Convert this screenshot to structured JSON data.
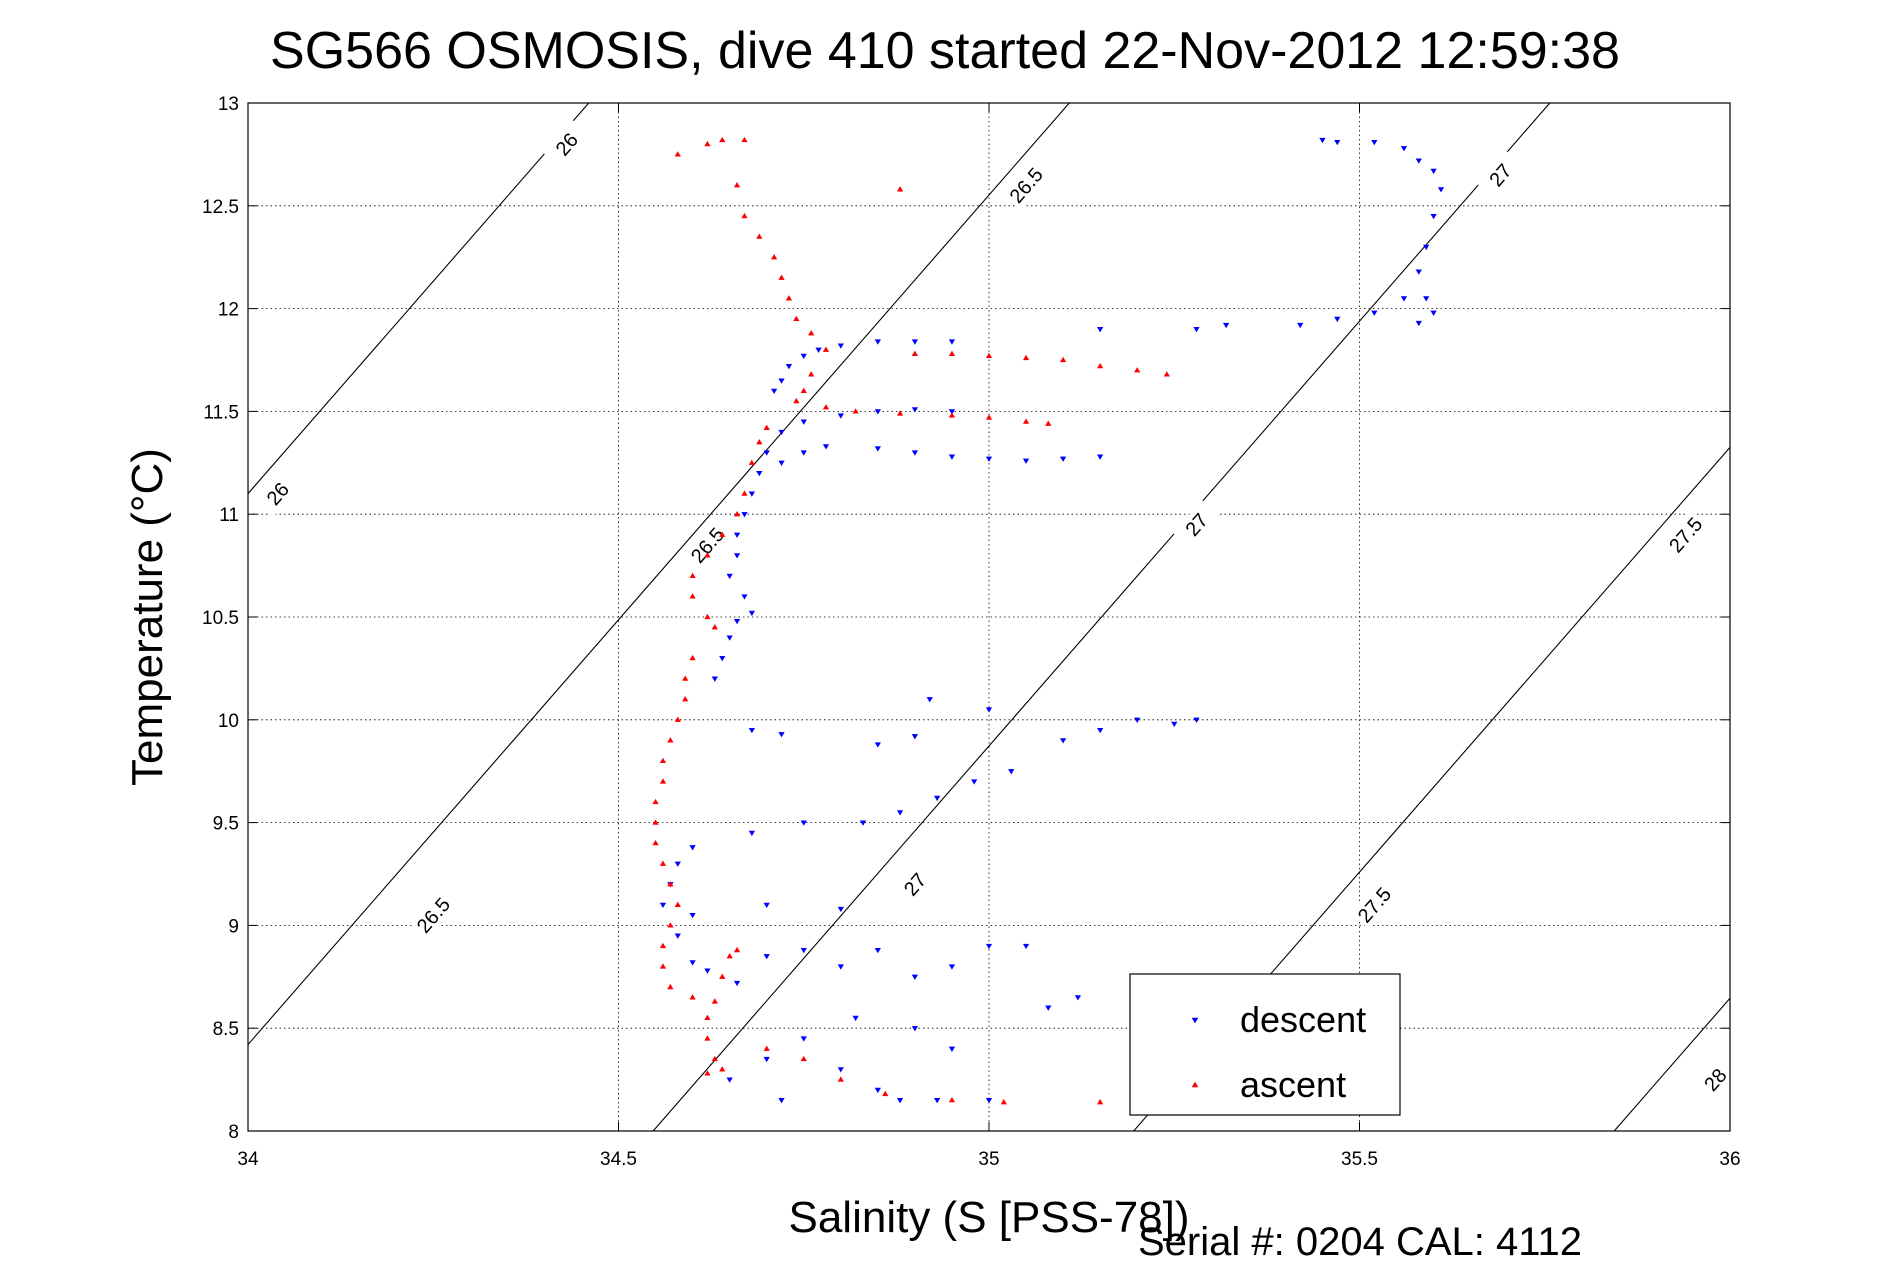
{
  "chart_data": {
    "type": "scatter",
    "title": "SG566 OSMOSIS, dive 410 started 22-Nov-2012 12:59:38",
    "xlabel": "Salinity (S [PSS-78])",
    "ylabel": "Temperature (°C)",
    "footer": "Serial #: 0204  CAL: 4112",
    "xlim": [
      34,
      36
    ],
    "ylim": [
      8,
      13
    ],
    "xticks": [
      34,
      34.5,
      35,
      35.5,
      36
    ],
    "yticks": [
      8,
      8.5,
      9,
      9.5,
      10,
      10.5,
      11,
      11.5,
      12,
      12.5,
      13
    ],
    "xtick_labels": [
      "34",
      "34.5",
      "35",
      "35.5",
      "36"
    ],
    "ytick_labels": [
      "8",
      "8.5",
      "9",
      "9.5",
      "10",
      "10.5",
      "11",
      "11.5",
      "12",
      "12.5",
      "13"
    ],
    "grid": true,
    "legend_position": "bottom-right",
    "density_contours": [
      {
        "level": 26,
        "label": "26",
        "label_positions": [
          [
            34.43,
            12.8
          ],
          [
            34.04,
            11.1
          ]
        ]
      },
      {
        "level": 26.5,
        "label": "26.5",
        "label_positions": [
          [
            35.05,
            12.6
          ],
          [
            34.62,
            10.85
          ],
          [
            34.25,
            9.05
          ]
        ]
      },
      {
        "level": 27,
        "label": "27",
        "label_positions": [
          [
            35.69,
            12.65
          ],
          [
            35.28,
            10.95
          ],
          [
            34.9,
            9.2
          ]
        ]
      },
      {
        "level": 27.5,
        "label": "27.5",
        "label_positions": [
          [
            35.94,
            10.9
          ],
          [
            35.52,
            9.1
          ]
        ]
      },
      {
        "level": 28,
        "label": "28",
        "label_positions": [
          [
            35.98,
            8.25
          ]
        ]
      }
    ],
    "series": [
      {
        "name": "descent",
        "color": "#0000ff",
        "marker": "triangle-down",
        "points": [
          [
            35.45,
            12.82
          ],
          [
            35.47,
            12.81
          ],
          [
            35.52,
            12.81
          ],
          [
            35.56,
            12.78
          ],
          [
            35.58,
            12.72
          ],
          [
            35.6,
            12.67
          ],
          [
            35.61,
            12.58
          ],
          [
            35.6,
            12.45
          ],
          [
            35.59,
            12.3
          ],
          [
            35.58,
            12.18
          ],
          [
            35.59,
            12.05
          ],
          [
            35.6,
            11.98
          ],
          [
            35.58,
            11.93
          ],
          [
            35.56,
            12.05
          ],
          [
            35.52,
            11.98
          ],
          [
            35.47,
            11.95
          ],
          [
            35.42,
            11.92
          ],
          [
            35.32,
            11.92
          ],
          [
            35.28,
            11.9
          ],
          [
            35.15,
            11.9
          ],
          [
            34.95,
            11.84
          ],
          [
            34.9,
            11.84
          ],
          [
            34.85,
            11.84
          ],
          [
            34.8,
            11.82
          ],
          [
            34.77,
            11.8
          ],
          [
            34.75,
            11.77
          ],
          [
            34.73,
            11.72
          ],
          [
            34.72,
            11.65
          ],
          [
            34.71,
            11.6
          ],
          [
            35.15,
            11.28
          ],
          [
            35.1,
            11.27
          ],
          [
            35.05,
            11.26
          ],
          [
            35.0,
            11.27
          ],
          [
            34.95,
            11.28
          ],
          [
            34.9,
            11.3
          ],
          [
            34.85,
            11.32
          ],
          [
            34.78,
            11.33
          ],
          [
            34.75,
            11.3
          ],
          [
            34.72,
            11.25
          ],
          [
            34.95,
            11.5
          ],
          [
            34.9,
            11.51
          ],
          [
            34.85,
            11.5
          ],
          [
            34.8,
            11.48
          ],
          [
            34.75,
            11.45
          ],
          [
            34.72,
            11.4
          ],
          [
            34.7,
            11.3
          ],
          [
            34.69,
            11.2
          ],
          [
            34.68,
            11.1
          ],
          [
            34.67,
            11.0
          ],
          [
            34.66,
            10.9
          ],
          [
            34.66,
            10.8
          ],
          [
            34.65,
            10.7
          ],
          [
            34.67,
            10.6
          ],
          [
            34.68,
            10.52
          ],
          [
            34.66,
            10.48
          ],
          [
            34.65,
            10.4
          ],
          [
            34.64,
            10.3
          ],
          [
            34.63,
            10.2
          ],
          [
            34.68,
            9.95
          ],
          [
            34.72,
            9.93
          ],
          [
            34.85,
            9.88
          ],
          [
            34.9,
            9.92
          ],
          [
            35.0,
            10.05
          ],
          [
            35.03,
            9.75
          ],
          [
            34.98,
            9.7
          ],
          [
            34.93,
            9.62
          ],
          [
            34.88,
            9.55
          ],
          [
            34.83,
            9.5
          ],
          [
            35.1,
            9.9
          ],
          [
            35.15,
            9.95
          ],
          [
            35.2,
            10.0
          ],
          [
            35.25,
            9.98
          ],
          [
            35.28,
            10.0
          ],
          [
            34.92,
            10.1
          ],
          [
            34.6,
            9.38
          ],
          [
            34.68,
            9.45
          ],
          [
            34.75,
            9.5
          ],
          [
            34.58,
            9.3
          ],
          [
            34.57,
            9.2
          ],
          [
            34.56,
            9.1
          ],
          [
            34.6,
            9.05
          ],
          [
            34.7,
            9.1
          ],
          [
            34.8,
            9.08
          ],
          [
            34.58,
            8.95
          ],
          [
            34.6,
            8.82
          ],
          [
            34.62,
            8.78
          ],
          [
            34.66,
            8.72
          ],
          [
            34.7,
            8.85
          ],
          [
            34.75,
            8.88
          ],
          [
            34.8,
            8.8
          ],
          [
            34.85,
            8.88
          ],
          [
            34.9,
            8.75
          ],
          [
            34.95,
            8.8
          ],
          [
            35.0,
            8.9
          ],
          [
            35.05,
            8.9
          ],
          [
            35.08,
            8.6
          ],
          [
            35.12,
            8.65
          ],
          [
            34.82,
            8.55
          ],
          [
            34.9,
            8.5
          ],
          [
            34.95,
            8.4
          ],
          [
            34.75,
            8.45
          ],
          [
            34.7,
            8.35
          ],
          [
            34.8,
            8.3
          ],
          [
            34.85,
            8.2
          ],
          [
            34.88,
            8.15
          ],
          [
            34.93,
            8.15
          ],
          [
            35.0,
            8.15
          ],
          [
            34.65,
            8.25
          ],
          [
            34.72,
            8.15
          ]
        ]
      },
      {
        "name": "ascent",
        "color": "#ff0000",
        "marker": "triangle-up",
        "points": [
          [
            34.58,
            12.75
          ],
          [
            34.62,
            12.8
          ],
          [
            34.64,
            12.82
          ],
          [
            34.67,
            12.82
          ],
          [
            34.88,
            12.58
          ],
          [
            34.66,
            12.6
          ],
          [
            34.67,
            12.45
          ],
          [
            34.69,
            12.35
          ],
          [
            34.71,
            12.25
          ],
          [
            34.72,
            12.15
          ],
          [
            34.73,
            12.05
          ],
          [
            34.74,
            11.95
          ],
          [
            34.76,
            11.88
          ],
          [
            34.78,
            11.8
          ],
          [
            34.76,
            11.68
          ],
          [
            34.75,
            11.6
          ],
          [
            34.74,
            11.55
          ],
          [
            34.78,
            11.52
          ],
          [
            34.82,
            11.5
          ],
          [
            34.88,
            11.49
          ],
          [
            34.95,
            11.48
          ],
          [
            35.0,
            11.47
          ],
          [
            35.05,
            11.45
          ],
          [
            35.08,
            11.44
          ],
          [
            34.9,
            11.78
          ],
          [
            34.95,
            11.78
          ],
          [
            35.0,
            11.77
          ],
          [
            35.05,
            11.76
          ],
          [
            35.1,
            11.75
          ],
          [
            35.15,
            11.72
          ],
          [
            35.2,
            11.7
          ],
          [
            35.24,
            11.68
          ],
          [
            34.7,
            11.42
          ],
          [
            34.69,
            11.35
          ],
          [
            34.68,
            11.25
          ],
          [
            34.67,
            11.1
          ],
          [
            34.66,
            11.0
          ],
          [
            34.64,
            10.9
          ],
          [
            34.62,
            10.8
          ],
          [
            34.6,
            10.7
          ],
          [
            34.6,
            10.6
          ],
          [
            34.62,
            10.5
          ],
          [
            34.63,
            10.45
          ],
          [
            34.6,
            10.3
          ],
          [
            34.59,
            10.2
          ],
          [
            34.59,
            10.1
          ],
          [
            34.58,
            10.0
          ],
          [
            34.57,
            9.9
          ],
          [
            34.56,
            9.8
          ],
          [
            34.56,
            9.7
          ],
          [
            34.55,
            9.6
          ],
          [
            34.55,
            9.5
          ],
          [
            34.55,
            9.4
          ],
          [
            34.56,
            9.3
          ],
          [
            34.57,
            9.2
          ],
          [
            34.58,
            9.1
          ],
          [
            34.57,
            9.0
          ],
          [
            34.56,
            8.9
          ],
          [
            34.56,
            8.8
          ],
          [
            34.57,
            8.7
          ],
          [
            34.6,
            8.65
          ],
          [
            34.63,
            8.63
          ],
          [
            34.64,
            8.75
          ],
          [
            34.65,
            8.85
          ],
          [
            34.66,
            8.88
          ],
          [
            34.62,
            8.55
          ],
          [
            34.62,
            8.45
          ],
          [
            34.63,
            8.35
          ],
          [
            34.62,
            8.28
          ],
          [
            34.64,
            8.3
          ],
          [
            34.7,
            8.4
          ],
          [
            34.75,
            8.35
          ],
          [
            34.8,
            8.25
          ],
          [
            34.86,
            8.18
          ],
          [
            34.95,
            8.15
          ],
          [
            35.02,
            8.14
          ],
          [
            35.15,
            8.14
          ]
        ]
      }
    ]
  }
}
